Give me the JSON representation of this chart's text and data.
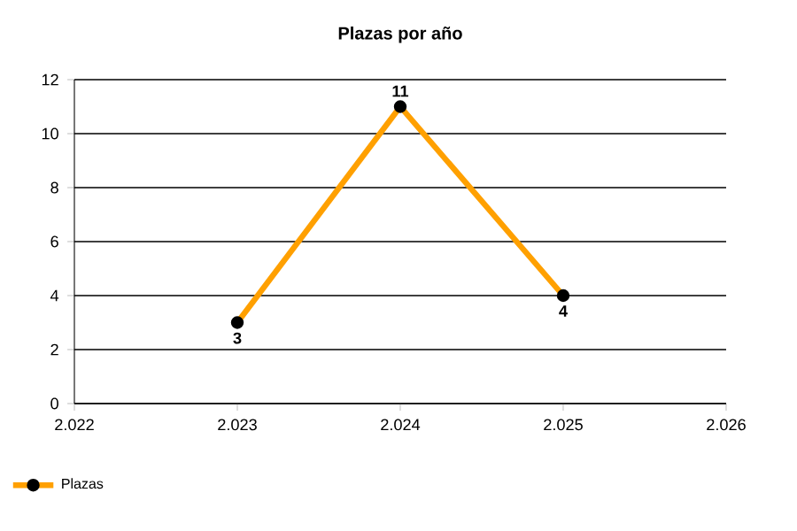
{
  "chart_data": {
    "type": "line",
    "title": "Plazas por año",
    "x": [
      2023,
      2024,
      2025
    ],
    "series": [
      {
        "name": "Plazas",
        "color": "#ffa000",
        "values": [
          3,
          11,
          4
        ]
      }
    ],
    "xlim": [
      2022,
      2026
    ],
    "xticks": [
      {
        "value": 2022,
        "label": "2.022"
      },
      {
        "value": 2023,
        "label": "2.023"
      },
      {
        "value": 2024,
        "label": "2.024"
      },
      {
        "value": 2025,
        "label": "2.025"
      },
      {
        "value": 2026,
        "label": "2.026"
      }
    ],
    "ylim": [
      0,
      12
    ],
    "yticks": [
      0,
      2,
      4,
      6,
      8,
      10,
      12
    ],
    "grid": "y",
    "legend": "bottom left",
    "marker": "circle",
    "line_style": "solid",
    "data_labels": true
  }
}
